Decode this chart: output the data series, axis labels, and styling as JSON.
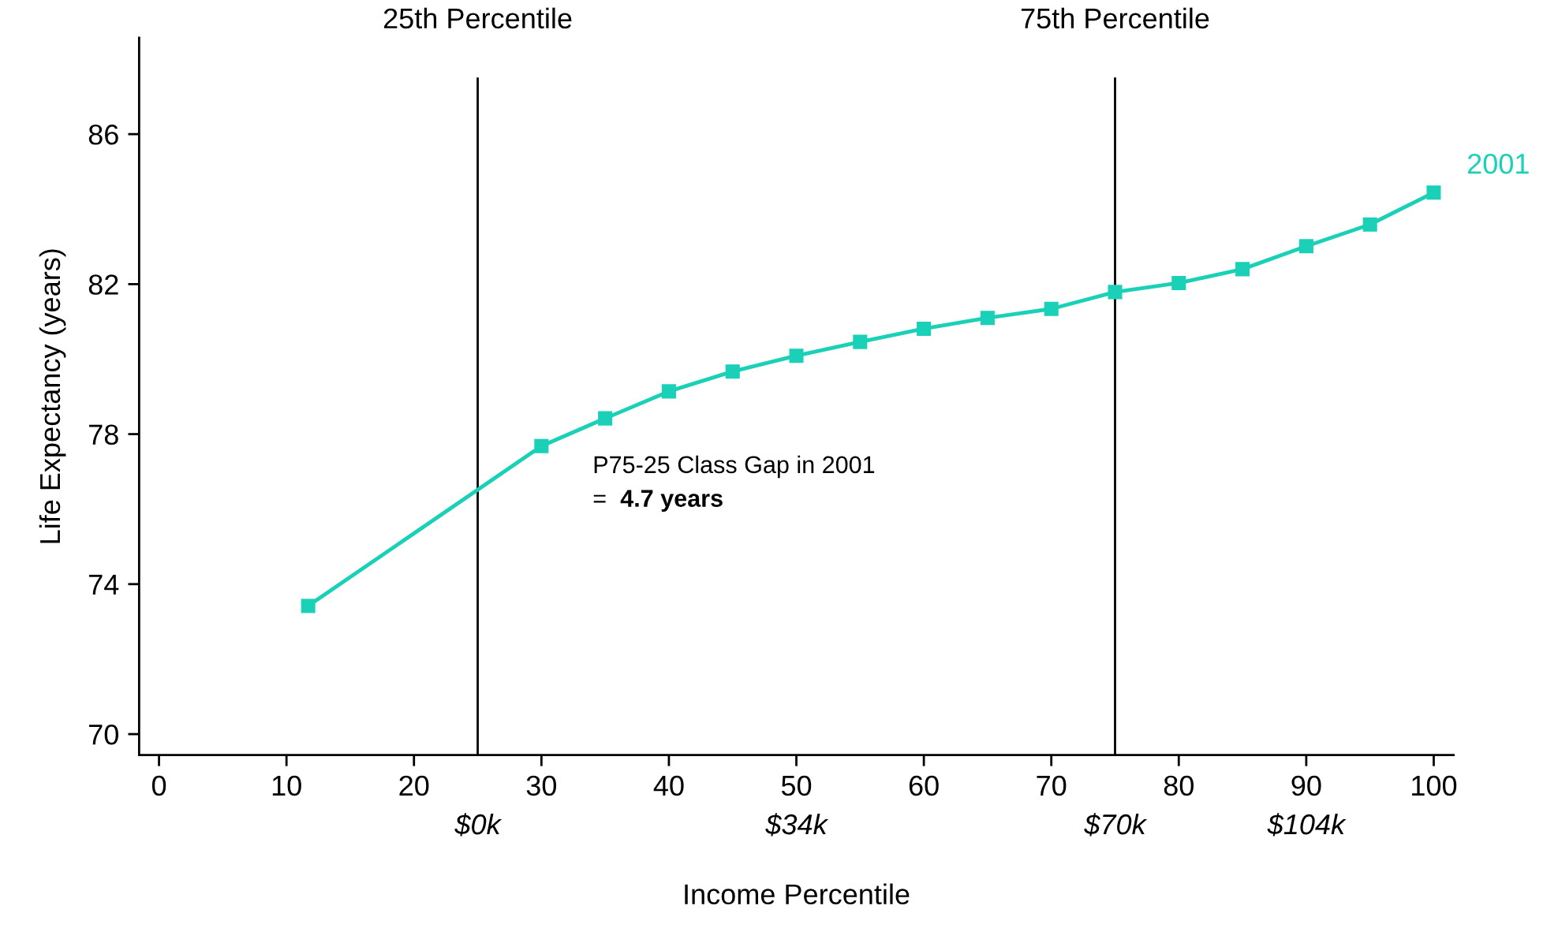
{
  "chart_data": {
    "type": "line",
    "xlabel": "Income Percentile",
    "ylabel": "Life Expectancy (years)",
    "xlim": [
      -1.56,
      101.56
    ],
    "ylim": [
      69.44,
      88.57
    ],
    "xticks": [
      0,
      10,
      20,
      30,
      40,
      50,
      60,
      70,
      80,
      90,
      100
    ],
    "yticks": [
      70,
      74,
      78,
      82,
      86
    ],
    "grid": false,
    "marker": "square",
    "line_style": "solid",
    "series": [
      {
        "name": "2001",
        "color": "#1ad1b8",
        "x": [
          11.7,
          30,
          35,
          40,
          45,
          50,
          55,
          60,
          65,
          70,
          75,
          80,
          85,
          90,
          95,
          100
        ],
        "values": [
          73.42,
          77.68,
          78.42,
          79.14,
          79.67,
          80.09,
          80.46,
          80.81,
          81.1,
          81.34,
          81.79,
          82.03,
          82.4,
          83.01,
          83.59,
          84.44
        ]
      }
    ],
    "ref_lines": [
      {
        "axis": "x",
        "value": 25,
        "label": "25th Percentile",
        "color": "#000000"
      },
      {
        "axis": "x",
        "value": 75,
        "label": "75th Percentile",
        "color": "#000000"
      }
    ],
    "annotations": [
      "P75-25 Class Gap in 2001",
      "=",
      "4.7 years",
      "$0k",
      "$34k",
      "$70k",
      "$104k"
    ]
  }
}
